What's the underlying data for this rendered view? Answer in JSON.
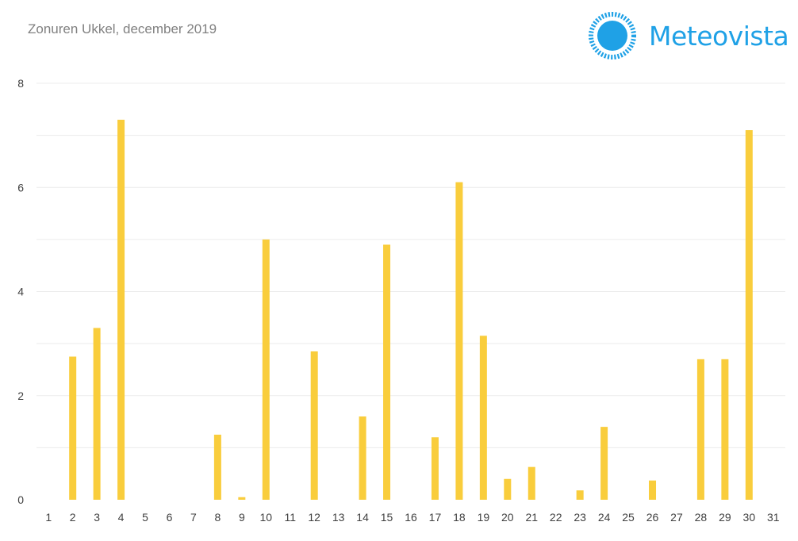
{
  "header": {
    "title": "Zonuren Ukkel, december 2019",
    "logo_text": "Meteovista"
  },
  "colors": {
    "bar": "#f9cd3c",
    "brand": "#1fa1e6",
    "grid": "#ececec",
    "tick_text": "#404040"
  },
  "chart_data": {
    "type": "bar",
    "title": "Zonuren Ukkel, december 2019",
    "xlabel": "",
    "ylabel": "",
    "ylim": [
      0,
      8
    ],
    "y_ticks": [
      0,
      2,
      4,
      6,
      8
    ],
    "grid": true,
    "categories": [
      "1",
      "2",
      "3",
      "4",
      "5",
      "6",
      "7",
      "8",
      "9",
      "10",
      "11",
      "12",
      "13",
      "14",
      "15",
      "16",
      "17",
      "18",
      "19",
      "20",
      "21",
      "22",
      "23",
      "24",
      "25",
      "26",
      "27",
      "28",
      "29",
      "30",
      "31"
    ],
    "values": [
      0,
      2.75,
      3.3,
      7.3,
      0,
      0,
      0,
      1.25,
      0.05,
      5.0,
      0,
      2.85,
      0,
      1.6,
      4.9,
      0,
      1.2,
      6.1,
      3.15,
      0.4,
      0.63,
      0,
      0.18,
      1.4,
      0,
      0.37,
      0,
      2.7,
      2.7,
      7.1,
      0
    ]
  }
}
